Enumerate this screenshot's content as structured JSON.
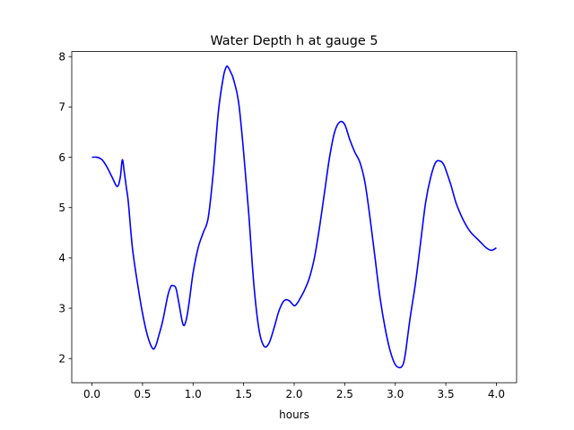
{
  "chart_data": {
    "type": "line",
    "title": "Water Depth h at gauge 5",
    "xlabel": "hours",
    "ylabel": "",
    "xlim": [
      -0.2,
      4.2
    ],
    "ylim": [
      1.52,
      8.1
    ],
    "xticks": [
      0.0,
      0.5,
      1.0,
      1.5,
      2.0,
      2.5,
      3.0,
      3.5,
      4.0
    ],
    "xtick_labels": [
      "0.0",
      "0.5",
      "1.0",
      "1.5",
      "2.0",
      "2.5",
      "3.0",
      "3.5",
      "4.0"
    ],
    "yticks": [
      2,
      3,
      4,
      5,
      6,
      7,
      8
    ],
    "ytick_labels": [
      "2",
      "3",
      "4",
      "5",
      "6",
      "7",
      "8"
    ],
    "grid": false,
    "series": [
      {
        "color": "#0000ff",
        "x": [
          0.0,
          0.05,
          0.1,
          0.15,
          0.2,
          0.25,
          0.28,
          0.3,
          0.32,
          0.34,
          0.36,
          0.4,
          0.45,
          0.5,
          0.55,
          0.6,
          0.63,
          0.66,
          0.7,
          0.75,
          0.78,
          0.8,
          0.83,
          0.86,
          0.9,
          0.93,
          0.96,
          1.0,
          1.05,
          1.1,
          1.15,
          1.2,
          1.25,
          1.3,
          1.33,
          1.35,
          1.37,
          1.4,
          1.45,
          1.5,
          1.55,
          1.6,
          1.65,
          1.7,
          1.75,
          1.8,
          1.85,
          1.9,
          1.95,
          2.0,
          2.03,
          2.06,
          2.1,
          2.15,
          2.2,
          2.25,
          2.3,
          2.35,
          2.4,
          2.45,
          2.5,
          2.55,
          2.6,
          2.65,
          2.7,
          2.75,
          2.8,
          2.85,
          2.9,
          2.95,
          3.0,
          3.05,
          3.08,
          3.1,
          3.12,
          3.15,
          3.2,
          3.25,
          3.3,
          3.35,
          3.4,
          3.45,
          3.48,
          3.5,
          3.55,
          3.6,
          3.65,
          3.7,
          3.75,
          3.8,
          3.85,
          3.9,
          3.95,
          4.0
        ],
        "y": [
          6.0,
          6.0,
          5.95,
          5.8,
          5.6,
          5.42,
          5.6,
          5.95,
          5.7,
          5.4,
          5.1,
          4.2,
          3.5,
          2.9,
          2.45,
          2.2,
          2.25,
          2.45,
          2.75,
          3.25,
          3.43,
          3.45,
          3.4,
          3.1,
          2.68,
          2.75,
          3.1,
          3.7,
          4.2,
          4.5,
          4.8,
          5.7,
          6.9,
          7.6,
          7.8,
          7.78,
          7.7,
          7.55,
          7.1,
          6.1,
          4.9,
          3.5,
          2.6,
          2.25,
          2.3,
          2.6,
          2.95,
          3.15,
          3.15,
          3.05,
          3.1,
          3.2,
          3.35,
          3.6,
          4.0,
          4.6,
          5.3,
          6.0,
          6.5,
          6.7,
          6.65,
          6.35,
          6.1,
          5.9,
          5.5,
          4.8,
          4.0,
          3.2,
          2.6,
          2.15,
          1.88,
          1.82,
          1.9,
          2.1,
          2.4,
          2.85,
          3.5,
          4.3,
          5.1,
          5.6,
          5.9,
          5.92,
          5.85,
          5.75,
          5.45,
          5.1,
          4.85,
          4.65,
          4.5,
          4.4,
          4.3,
          4.2,
          4.15,
          4.2
        ]
      }
    ]
  }
}
